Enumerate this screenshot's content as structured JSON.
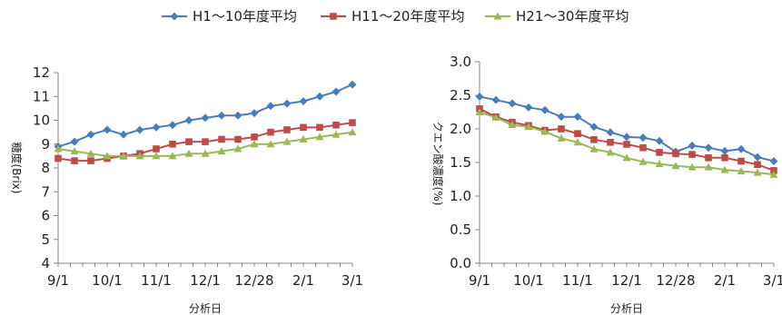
{
  "legend": {
    "position": "top-center",
    "entries": [
      {
        "label": "H1～10年度平均",
        "color": "#4A7EBB",
        "marker": "diamond"
      },
      {
        "label": "H11～20年度平均",
        "color": "#BE4B48",
        "marker": "square"
      },
      {
        "label": "H21～30年度平均",
        "color": "#98B954",
        "marker": "triangle"
      }
    ]
  },
  "chart_data": [
    {
      "type": "line",
      "ylabel": "糖度(Brix)",
      "xlabel": "分析日",
      "ylim": [
        4,
        12
      ],
      "yticks": [
        4,
        5,
        6,
        7,
        8,
        9,
        10,
        11,
        12
      ],
      "grid": false,
      "xticks": [
        {
          "label": "9/1",
          "index": 0
        },
        {
          "label": "10/1",
          "index": 4
        },
        {
          "label": "11/1",
          "index": 8
        },
        {
          "label": "12/1",
          "index": 12
        },
        {
          "label": "12/28",
          "index": 16
        },
        {
          "label": "2/1",
          "index": 20
        },
        {
          "label": "3/1",
          "index": 24
        }
      ],
      "series": [
        {
          "name": "H1～10年度平均",
          "color": "#4A7EBB",
          "marker": "diamond",
          "values": [
            8.9,
            9.1,
            9.4,
            9.6,
            9.4,
            9.6,
            9.7,
            9.8,
            10.0,
            10.1,
            10.2,
            10.2,
            10.3,
            10.6,
            10.7,
            10.8,
            11.0,
            11.2,
            11.5
          ]
        },
        {
          "name": "H11～20年度平均",
          "color": "#BE4B48",
          "marker": "square",
          "values": [
            8.4,
            8.3,
            8.3,
            8.4,
            8.5,
            8.6,
            8.8,
            9.0,
            9.1,
            9.1,
            9.2,
            9.2,
            9.3,
            9.5,
            9.6,
            9.7,
            9.7,
            9.8,
            9.9
          ]
        },
        {
          "name": "H21～30年度平均",
          "color": "#98B954",
          "marker": "triangle",
          "values": [
            8.8,
            8.7,
            8.6,
            8.5,
            8.5,
            8.5,
            8.5,
            8.5,
            8.6,
            8.6,
            8.7,
            8.8,
            9.0,
            9.0,
            9.1,
            9.2,
            9.3,
            9.4,
            9.5
          ]
        }
      ]
    },
    {
      "type": "line",
      "ylabel": "クエン酸濃度(%)",
      "xlabel": "分析日",
      "ylim": [
        0.0,
        3.0
      ],
      "yticks": [
        "0.0",
        "0.5",
        "1.0",
        "1.5",
        "2.0",
        "2.5",
        "3.0"
      ],
      "grid": false,
      "xticks": [
        {
          "label": "9/1",
          "index": 0
        },
        {
          "label": "10/1",
          "index": 4
        },
        {
          "label": "11/1",
          "index": 8
        },
        {
          "label": "12/1",
          "index": 12
        },
        {
          "label": "12/28",
          "index": 16
        },
        {
          "label": "2/1",
          "index": 20
        },
        {
          "label": "3/1",
          "index": 24
        }
      ],
      "series": [
        {
          "name": "H1～10年度平均",
          "color": "#4A7EBB",
          "marker": "diamond",
          "values": [
            2.48,
            2.43,
            2.38,
            2.32,
            2.28,
            2.18,
            2.18,
            2.03,
            1.95,
            1.88,
            1.87,
            1.82,
            1.66,
            1.75,
            1.72,
            1.67,
            1.7,
            1.58,
            1.52
          ]
        },
        {
          "name": "H11～20年度平均",
          "color": "#BE4B48",
          "marker": "square",
          "values": [
            2.3,
            2.18,
            2.1,
            2.05,
            1.98,
            2.0,
            1.93,
            1.84,
            1.8,
            1.77,
            1.72,
            1.65,
            1.63,
            1.62,
            1.57,
            1.57,
            1.52,
            1.47,
            1.38
          ]
        },
        {
          "name": "H21～30年度平均",
          "color": "#98B954",
          "marker": "triangle",
          "values": [
            2.25,
            2.17,
            2.06,
            2.03,
            1.96,
            1.86,
            1.8,
            1.7,
            1.65,
            1.57,
            1.51,
            1.48,
            1.45,
            1.43,
            1.43,
            1.39,
            1.37,
            1.35,
            1.32
          ]
        }
      ]
    }
  ]
}
